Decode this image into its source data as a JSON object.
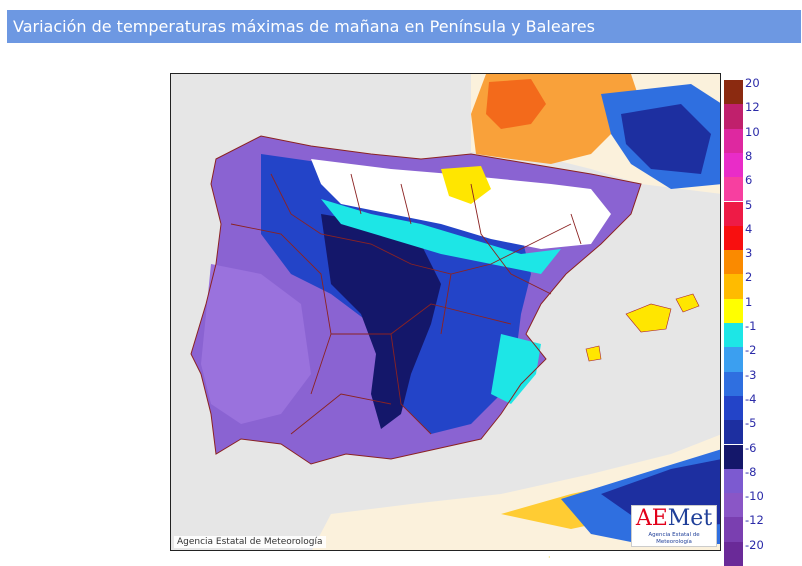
{
  "header": {
    "title": "Variación de temperaturas máximas de mañana en Península y Baleares"
  },
  "map": {
    "copyright": "Agencia Estatal de Meteorología",
    "logo": {
      "wordmark_left": "A",
      "wordmark_accent": "E",
      "wordmark_right": "Met",
      "subtitle": "Agencia Estatal de Meteorología"
    },
    "stray_mark": "·"
  },
  "legend": {
    "positive": [
      {
        "label": "20",
        "color": "#8b2a10"
      },
      {
        "label": "12",
        "color": "#c0206c"
      },
      {
        "label": "10",
        "color": "#de28a0"
      },
      {
        "label": "8",
        "color": "#e92cc8"
      },
      {
        "label": "6",
        "color": "#f73fa0"
      },
      {
        "label": "5",
        "color": "#ee1b46"
      },
      {
        "label": "4",
        "color": "#f80f0f"
      },
      {
        "label": "3",
        "color": "#fa8a00"
      },
      {
        "label": "2",
        "color": "#ffbb00"
      },
      {
        "label": "1",
        "color": "#ffff00"
      }
    ],
    "negative": [
      {
        "label": "-1",
        "color": "#1de6e6"
      },
      {
        "label": "-2",
        "color": "#3b9ff0"
      },
      {
        "label": "-3",
        "color": "#2f6fe0"
      },
      {
        "label": "-4",
        "color": "#2344c8"
      },
      {
        "label": "-5",
        "color": "#1d2fa0"
      },
      {
        "label": "-6",
        "color": "#14176a"
      },
      {
        "label": "-8",
        "color": "#7c5ad0"
      },
      {
        "label": "-10",
        "color": "#8a56c6"
      },
      {
        "label": "-12",
        "color": "#7a3fb0"
      },
      {
        "label": "-20",
        "color": "#6a2a98"
      }
    ]
  }
}
